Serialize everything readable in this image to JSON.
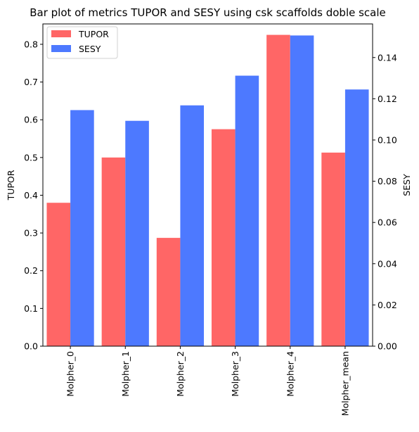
{
  "chart_data": {
    "type": "bar",
    "title": "Bar plot of metrics TUPOR and SESY using csk scaffolds doble scale",
    "categories": [
      "Molpher_0",
      "Molpher_1",
      "Molpher_2",
      "Molpher_3",
      "Molpher_4",
      "Molpher_mean"
    ],
    "series": [
      {
        "name": "TUPOR",
        "axis": "left",
        "color": "#ff6666",
        "values": [
          0.38,
          0.5,
          0.287,
          0.575,
          0.825,
          0.513
        ]
      },
      {
        "name": "SESY",
        "axis": "right",
        "color": "#4d79ff",
        "values": [
          0.1145,
          0.1093,
          0.1168,
          0.1312,
          0.1507,
          0.1245
        ]
      }
    ],
    "ylabel": "TUPOR",
    "y2label": "SESY",
    "ylim": [
      0,
      0.854
    ],
    "y2lim": [
      0,
      0.1563
    ],
    "yticks": [
      "0.0",
      "0.1",
      "0.2",
      "0.3",
      "0.4",
      "0.5",
      "0.6",
      "0.7",
      "0.8"
    ],
    "y2ticks": [
      "0.00",
      "0.02",
      "0.04",
      "0.06",
      "0.08",
      "0.10",
      "0.12",
      "0.14"
    ],
    "legend_position": "top-left",
    "grid": false
  }
}
